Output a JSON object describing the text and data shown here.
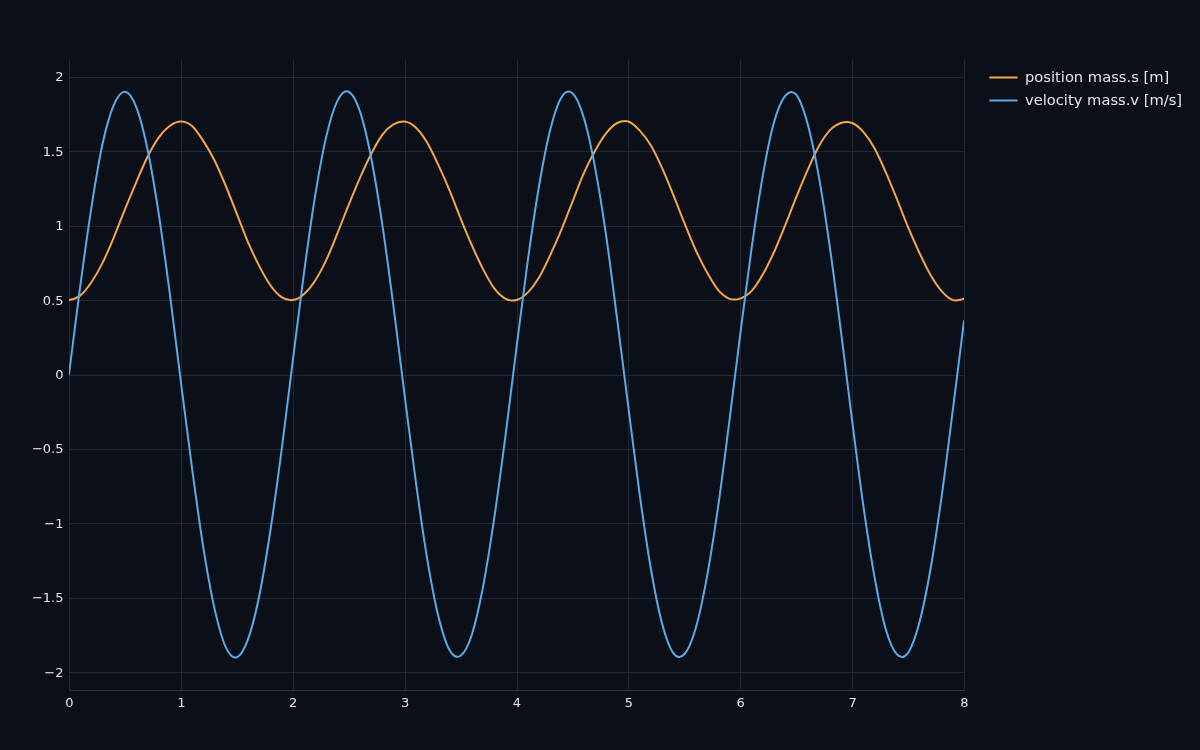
{
  "chart_data": {
    "type": "line",
    "x": [
      0,
      0.1,
      0.2,
      0.3,
      0.4,
      0.5,
      0.6,
      0.7,
      0.8,
      0.9,
      1,
      1.1,
      1.2,
      1.3,
      1.4,
      1.5,
      1.6,
      1.7,
      1.8,
      1.9,
      2,
      2.1,
      2.2,
      2.3,
      2.4,
      2.5,
      2.6,
      2.7,
      2.8,
      2.9,
      3,
      3.1,
      3.2,
      3.3,
      3.4,
      3.5,
      3.6,
      3.7,
      3.8,
      3.9,
      4,
      4.1,
      4.2,
      4.3,
      4.4,
      4.5,
      4.6,
      4.7,
      4.8,
      4.9,
      5,
      5.1,
      5.2,
      5.3,
      5.4,
      5.5,
      5.6,
      5.7,
      5.8,
      5.9,
      6,
      6.1,
      6.2,
      6.3,
      6.4,
      6.5,
      6.6,
      6.7,
      6.8,
      6.9,
      7,
      7.1,
      7.2,
      7.3,
      7.4,
      7.5,
      7.6,
      7.7,
      7.8,
      7.9,
      8
    ],
    "series": [
      {
        "name": "position mass.s [m]",
        "color": "#f5a54a",
        "values": [
          0.5,
          0.53,
          0.62,
          0.75,
          0.92,
          1.11,
          1.29,
          1.46,
          1.59,
          1.67,
          1.7,
          1.67,
          1.57,
          1.44,
          1.27,
          1.08,
          0.89,
          0.73,
          0.6,
          0.52,
          0.5,
          0.54,
          0.63,
          0.77,
          0.95,
          1.14,
          1.32,
          1.48,
          1.61,
          1.68,
          1.7,
          1.66,
          1.56,
          1.41,
          1.24,
          1.05,
          0.87,
          0.71,
          0.58,
          0.51,
          0.5,
          0.55,
          0.65,
          0.8,
          0.97,
          1.16,
          1.35,
          1.5,
          1.62,
          1.69,
          1.7,
          1.64,
          1.54,
          1.39,
          1.21,
          1.02,
          0.84,
          0.69,
          0.57,
          0.51,
          0.51,
          0.56,
          0.67,
          0.82,
          1.0,
          1.19,
          1.37,
          1.53,
          1.64,
          1.69,
          1.69,
          1.63,
          1.52,
          1.36,
          1.18,
          0.99,
          0.82,
          0.67,
          0.56,
          0.5,
          0.51
        ]
      },
      {
        "name": "velocity mass.v [m/s]",
        "color": "#5aabe8",
        "values": [
          0,
          0.59,
          1.12,
          1.55,
          1.81,
          1.9,
          1.8,
          1.52,
          1.09,
          0.55,
          -0.05,
          -0.63,
          -1.16,
          -1.57,
          -1.83,
          -1.9,
          -1.78,
          -1.49,
          -1.05,
          -0.51,
          0.09,
          0.68,
          1.2,
          1.6,
          1.84,
          1.9,
          1.77,
          1.46,
          1.01,
          0.46,
          -0.14,
          -0.72,
          -1.23,
          -1.62,
          -1.85,
          -1.89,
          -1.75,
          -1.43,
          -0.97,
          -0.42,
          0.18,
          0.76,
          1.26,
          1.64,
          1.86,
          1.89,
          1.73,
          1.4,
          0.94,
          0.37,
          -0.22,
          -0.8,
          -1.3,
          -1.67,
          -1.87,
          -1.88,
          -1.71,
          -1.37,
          -0.9,
          -0.33,
          0.27,
          0.84,
          1.33,
          1.69,
          1.87,
          1.88,
          1.69,
          1.34,
          0.86,
          0.29,
          -0.31,
          -0.88,
          -1.36,
          -1.71,
          -1.88,
          -1.87,
          -1.67,
          -1.31,
          -0.82,
          -0.24,
          0.36
        ]
      }
    ],
    "xlim": [
      0,
      8
    ],
    "xticks": [
      0,
      1,
      2,
      3,
      4,
      5,
      6,
      7,
      8
    ],
    "ylim": [
      -2.12,
      2.12
    ],
    "yticks": [
      {
        "value": -2,
        "label": "−2"
      },
      {
        "value": -1.5,
        "label": "−1.5"
      },
      {
        "value": -1,
        "label": "−1"
      },
      {
        "value": -0.5,
        "label": "−0.5"
      },
      0,
      0.5,
      1,
      1.5,
      2
    ],
    "grid": true,
    "legend": "top right"
  }
}
